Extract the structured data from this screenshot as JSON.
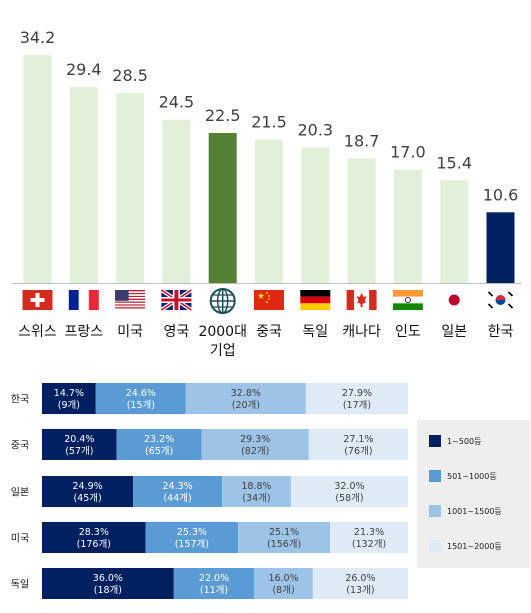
{
  "chart_data": [
    {
      "type": "bar",
      "categories": [
        "스위스",
        "프랑스",
        "미국",
        "영국",
        "2000대 기업",
        "중국",
        "독일",
        "캐나다",
        "인도",
        "일본",
        "한국"
      ],
      "values": [
        34.2,
        29.4,
        28.5,
        24.5,
        22.5,
        21.5,
        20.3,
        18.7,
        17.0,
        15.4,
        10.6
      ],
      "value_labels": [
        "34.2",
        "29.4",
        "28.5",
        "24.5",
        "22.5",
        "21.5",
        "20.3",
        "18.7",
        "17.0",
        "15.4",
        "10.6"
      ],
      "category_label_lines": [
        [
          "스위스"
        ],
        [
          "프랑스"
        ],
        [
          "미국"
        ],
        [
          "영국"
        ],
        [
          "2000대",
          "기업"
        ],
        [
          "중국"
        ],
        [
          "독일"
        ],
        [
          "캐나다"
        ],
        [
          "인도"
        ],
        [
          "일본"
        ],
        [
          "한국"
        ]
      ],
      "flags": [
        "switzerland-flag",
        "france-flag",
        "usa-flag",
        "uk-flag",
        "globe-icon",
        "china-flag",
        "germany-flag",
        "canada-flag",
        "india-flag",
        "japan-flag",
        "korea-flag"
      ],
      "colors": {
        "default": "#e2efd9",
        "highlight_2000": "#548235",
        "highlight_korea": "#002060"
      },
      "ylim": [
        0,
        35
      ],
      "title": "",
      "xlabel": "",
      "ylabel": ""
    },
    {
      "type": "bar",
      "orientation": "horizontal-stacked-percent",
      "categories": [
        "한국",
        "중국",
        "일본",
        "미국",
        "독일"
      ],
      "series": [
        {
          "name": "1~500등",
          "color": "#002060",
          "text_color": "#ffffff",
          "values": [
            14.7,
            20.4,
            24.9,
            28.3,
            36.0
          ],
          "labels": [
            "14.7%",
            "20.4%",
            "24.9%",
            "28.3%",
            "36.0%"
          ],
          "counts": [
            "(9개)",
            "(57개)",
            "(45개)",
            "(176개)",
            "(18개)"
          ]
        },
        {
          "name": "501~1000등",
          "color": "#5b9bd5",
          "text_color": "#ffffff",
          "values": [
            24.6,
            23.2,
            24.3,
            25.3,
            22.0
          ],
          "labels": [
            "24.6%",
            "23.2%",
            "24.3%",
            "25.3%",
            "22.0%"
          ],
          "counts": [
            "(15개)",
            "(65개)",
            "(44개)",
            "(157개)",
            "(11개)"
          ]
        },
        {
          "name": "1001~1500등",
          "color": "#9dc3e6",
          "text_color": "#404040",
          "values": [
            32.8,
            29.3,
            18.8,
            25.1,
            16.0
          ],
          "labels": [
            "32.8%",
            "29.3%",
            "18.8%",
            "25.1%",
            "16.0%"
          ],
          "counts": [
            "(20개)",
            "(82개)",
            "(34개)",
            "(156개)",
            "(8개)"
          ]
        },
        {
          "name": "1501~2000등",
          "color": "#deebf7",
          "text_color": "#404040",
          "values": [
            27.9,
            27.1,
            32.0,
            21.3,
            26.0
          ],
          "labels": [
            "27.9%",
            "27.1%",
            "32.0%",
            "21.3%",
            "26.0%"
          ],
          "counts": [
            "(17개)",
            "(76개)",
            "(58개)",
            "(132개)",
            "(13개)"
          ]
        }
      ],
      "legend_position": "right",
      "xlim": [
        0,
        100
      ],
      "title": "",
      "xlabel": "",
      "ylabel": ""
    }
  ]
}
